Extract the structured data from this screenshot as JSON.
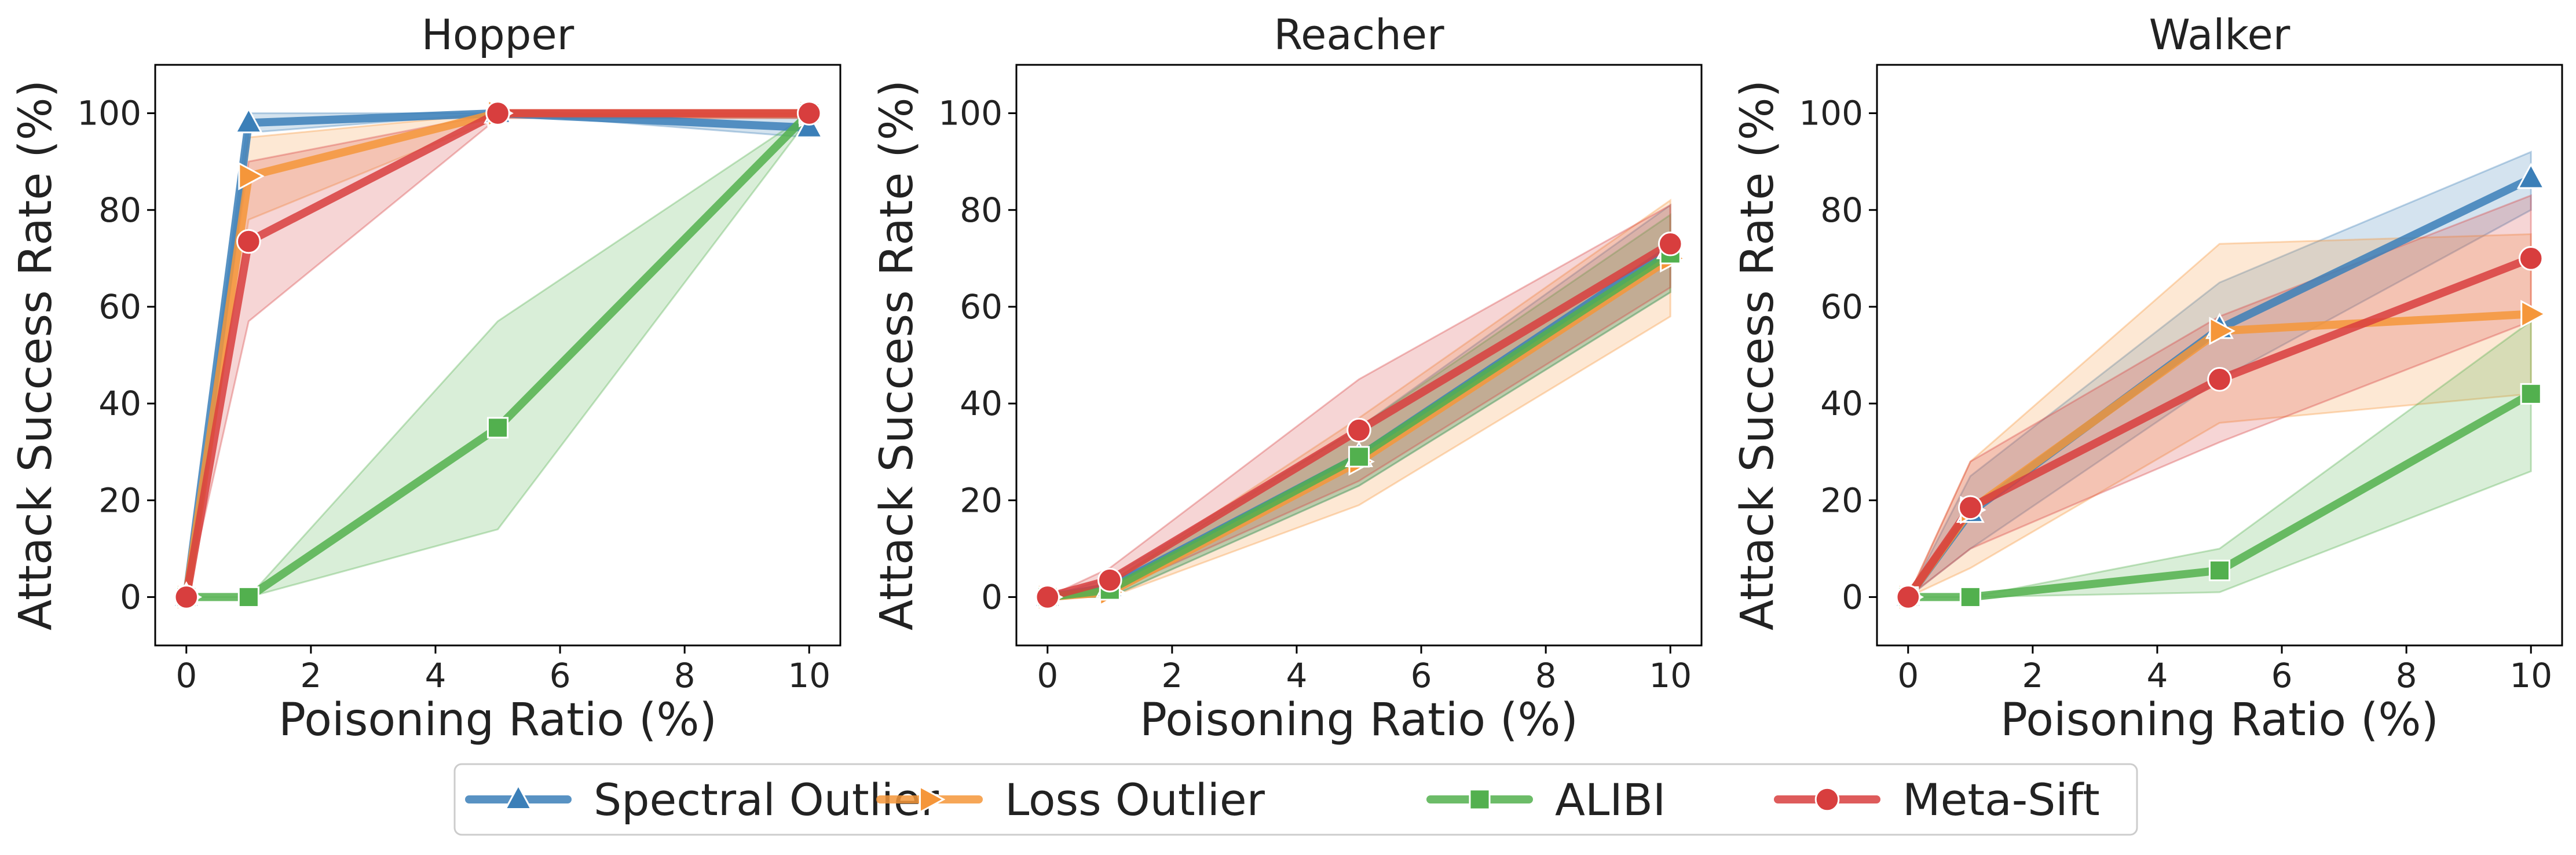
{
  "figure": {
    "legend": {
      "placement": "bottom-center",
      "entries": [
        {
          "label": "Spectral Outlier",
          "color": "#3b7fb8",
          "marker": "triangle-up"
        },
        {
          "label": "Loss Outlier",
          "color": "#f5963a",
          "marker": "triangle-right"
        },
        {
          "label": "ALIBI",
          "color": "#52b04e",
          "marker": "square"
        },
        {
          "label": "Meta-Sift",
          "color": "#d83e3e",
          "marker": "circle"
        }
      ]
    }
  },
  "chart_data": [
    {
      "type": "line",
      "title": "Hopper",
      "xlabel": "Poisoning Ratio (%)",
      "ylabel": "Attack Success Rate (%)",
      "xlim": [
        -0.5,
        10.5
      ],
      "ylim": [
        -10,
        110
      ],
      "xticks": [
        0,
        2,
        4,
        6,
        8,
        10
      ],
      "yticks": [
        0,
        20,
        40,
        60,
        80,
        100
      ],
      "x": [
        0,
        1,
        5,
        10
      ],
      "series": [
        {
          "name": "Spectral Outlier",
          "values": [
            0,
            98,
            100,
            97
          ],
          "lower": [
            0,
            96,
            100,
            95
          ],
          "upper": [
            0,
            100,
            100,
            99
          ]
        },
        {
          "name": "Loss Outlier",
          "values": [
            0,
            87,
            100,
            100
          ],
          "lower": [
            0,
            78,
            99,
            99
          ],
          "upper": [
            0,
            95,
            100,
            100
          ]
        },
        {
          "name": "ALIBI",
          "values": [
            0,
            0,
            35,
            100
          ],
          "lower": [
            0,
            0,
            14,
            99
          ],
          "upper": [
            0,
            0,
            57,
            100
          ]
        },
        {
          "name": "Meta-Sift",
          "values": [
            0,
            73.5,
            100,
            100
          ],
          "lower": [
            0,
            57,
            99,
            99
          ],
          "upper": [
            0,
            90,
            100,
            100
          ]
        }
      ]
    },
    {
      "type": "line",
      "title": "Reacher",
      "xlabel": "Poisoning Ratio (%)",
      "ylabel": "Attack Success Rate (%)",
      "xlim": [
        -0.5,
        10.5
      ],
      "ylim": [
        -10,
        110
      ],
      "xticks": [
        0,
        2,
        4,
        6,
        8,
        10
      ],
      "yticks": [
        0,
        20,
        40,
        60,
        80,
        100
      ],
      "x": [
        0,
        1,
        5,
        10
      ],
      "series": [
        {
          "name": "Spectral Outlier",
          "values": [
            0,
            2,
            29,
            72
          ],
          "lower": [
            0,
            0,
            23,
            63
          ],
          "upper": [
            0,
            4,
            35,
            81
          ]
        },
        {
          "name": "Loss Outlier",
          "values": [
            0,
            1,
            28,
            70
          ],
          "lower": [
            0,
            0,
            19,
            58
          ],
          "upper": [
            0,
            3,
            37,
            82
          ]
        },
        {
          "name": "ALIBI",
          "values": [
            0,
            1.5,
            29,
            71
          ],
          "lower": [
            0,
            0,
            23,
            63
          ],
          "upper": [
            0,
            3,
            35,
            79
          ]
        },
        {
          "name": "Meta-Sift",
          "values": [
            0,
            3.5,
            34.5,
            73
          ],
          "lower": [
            0,
            1,
            24,
            64
          ],
          "upper": [
            0,
            6,
            45,
            81
          ]
        }
      ]
    },
    {
      "type": "line",
      "title": "Walker",
      "xlabel": "Poisoning Ratio (%)",
      "ylabel": "Attack Success Rate (%)",
      "xlim": [
        -0.5,
        10.5
      ],
      "ylim": [
        -10,
        110
      ],
      "xticks": [
        0,
        2,
        4,
        6,
        8,
        10
      ],
      "yticks": [
        0,
        20,
        40,
        60,
        80,
        100
      ],
      "x": [
        0,
        1,
        5,
        10
      ],
      "series": [
        {
          "name": "Spectral Outlier",
          "values": [
            0,
            17.5,
            55.5,
            86.5
          ],
          "lower": [
            0,
            10,
            45,
            80
          ],
          "upper": [
            0,
            25,
            65,
            92
          ]
        },
        {
          "name": "Loss Outlier",
          "values": [
            0,
            18,
            55,
            58.5
          ],
          "lower": [
            0,
            6,
            36,
            42
          ],
          "upper": [
            0,
            28,
            73,
            75
          ]
        },
        {
          "name": "ALIBI",
          "values": [
            0,
            0,
            5.5,
            42
          ],
          "lower": [
            0,
            0,
            1,
            26
          ],
          "upper": [
            0,
            0,
            10,
            57
          ]
        },
        {
          "name": "Meta-Sift",
          "values": [
            0,
            18.5,
            45,
            70
          ],
          "lower": [
            0,
            10,
            32,
            57
          ],
          "upper": [
            0,
            28,
            58,
            83
          ]
        }
      ]
    }
  ]
}
